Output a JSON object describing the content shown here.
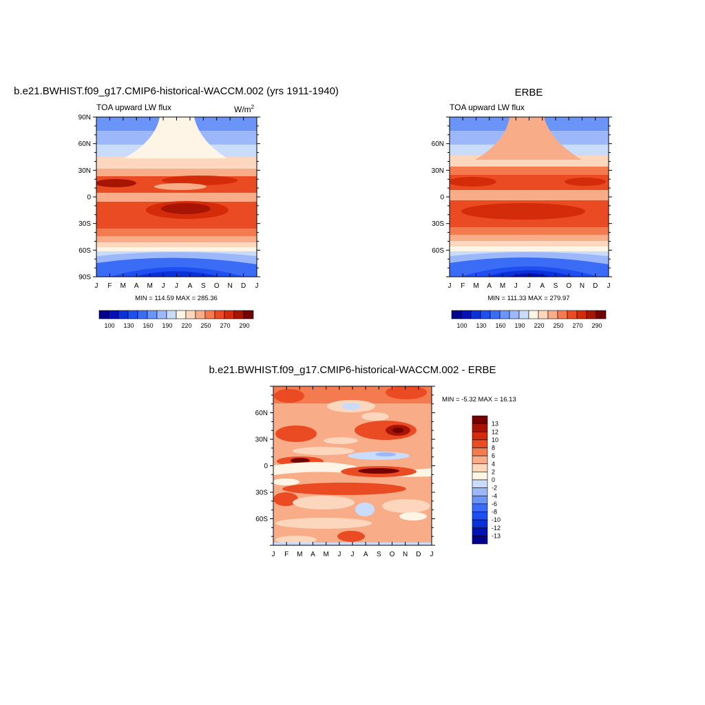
{
  "colors": {
    "scale": [
      "#02028c",
      "#0212b4",
      "#0a32d8",
      "#1f4ff0",
      "#3b6cf6",
      "#6a94f8",
      "#9cb8fa",
      "#c9dcfc",
      "#fff5e6",
      "#fcd6bd",
      "#f9ac88",
      "#f47a50",
      "#eb4b22",
      "#d42c0a",
      "#a81404",
      "#730101"
    ]
  },
  "chart_data": [
    {
      "type": "heatmap",
      "title": "b.e21.BWHIST.f09_g17.CMIP6-historical-WACCM.002 (yrs 1911-1940)",
      "left_string": "TOA upward LW flux",
      "units_base": "W/m",
      "units_exp": "2",
      "x_ticks": [
        "J",
        "F",
        "M",
        "A",
        "M",
        "J",
        "J",
        "A",
        "S",
        "O",
        "N",
        "D",
        "J"
      ],
      "y_ticks": [
        "90N",
        "60N",
        "30N",
        "0",
        "30S",
        "60S",
        "90S"
      ],
      "y_values": [
        90,
        60,
        30,
        0,
        -30,
        -60,
        -90
      ],
      "ylim": [
        -90,
        90
      ],
      "stats": "MIN = 114.59 MAX = 285.36",
      "min": 114.59,
      "max": 285.36,
      "colorbar": {
        "orientation": "horizontal",
        "labels": [
          "100",
          "130",
          "160",
          "190",
          "220",
          "250",
          "270",
          "290"
        ],
        "levels": [
          100,
          110,
          120,
          130,
          140,
          150,
          160,
          170,
          180,
          190,
          200,
          210,
          220,
          230,
          240,
          250,
          260,
          270,
          280,
          290
        ]
      }
    },
    {
      "type": "heatmap",
      "title": "ERBE",
      "left_string": "TOA upward LW flux",
      "x_ticks": [
        "J",
        "F",
        "M",
        "A",
        "M",
        "J",
        "J",
        "A",
        "S",
        "O",
        "N",
        "D",
        "J"
      ],
      "y_ticks": [
        "60N",
        "30N",
        "0",
        "30S",
        "60S"
      ],
      "y_values": [
        60,
        30,
        0,
        -30,
        -60
      ],
      "ylim": [
        -90,
        90
      ],
      "stats": "MIN = 111.33 MAX = 279.97",
      "min": 111.33,
      "max": 279.97,
      "colorbar": {
        "orientation": "horizontal",
        "labels": [
          "100",
          "130",
          "160",
          "190",
          "220",
          "250",
          "270",
          "290"
        ]
      }
    },
    {
      "type": "heatmap",
      "title": "b.e21.BWHIST.f09_g17.CMIP6-historical-WACCM.002 - ERBE",
      "x_ticks": [
        "J",
        "F",
        "M",
        "A",
        "M",
        "J",
        "J",
        "A",
        "S",
        "O",
        "N",
        "D",
        "J"
      ],
      "y_ticks": [
        "60N",
        "30N",
        "0",
        "30S",
        "60S"
      ],
      "y_values": [
        60,
        30,
        0,
        -30,
        -60
      ],
      "ylim": [
        -90,
        90
      ],
      "stats": "MIN =  -5.32 MAX =  16.13",
      "min": -5.32,
      "max": 16.13,
      "colorbar": {
        "orientation": "vertical",
        "labels": [
          "13",
          "12",
          "10",
          "8",
          "6",
          "4",
          "2",
          "0",
          "-2",
          "-4",
          "-6",
          "-8",
          "-10",
          "-12",
          "-13"
        ]
      }
    }
  ]
}
